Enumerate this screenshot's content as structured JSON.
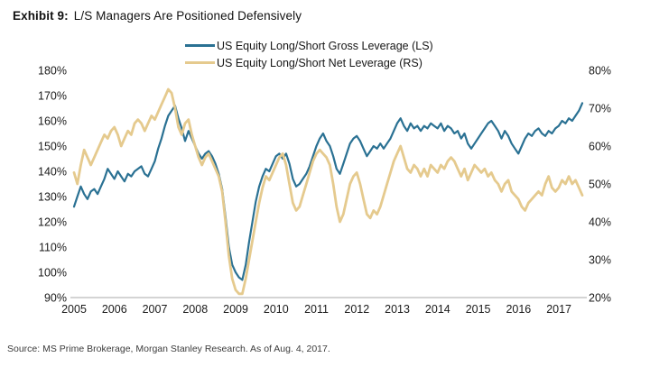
{
  "header": {
    "exhibit_label": "Exhibit 9:",
    "title": "L/S Managers Are Positioned Defensively"
  },
  "legend": [
    {
      "label": "US Equity Long/Short Gross Leverage (LS)",
      "color": "#2a7193"
    },
    {
      "label": "US Equity Long/Short Net Leverage (RS)",
      "color": "#e5ca8e"
    }
  ],
  "chart_data": {
    "type": "line",
    "x_start": 2005.0,
    "x_step_years": 0.0833,
    "x_tick_labels": [
      "2005",
      "2006",
      "2007",
      "2008",
      "2009",
      "2010",
      "2011",
      "2012",
      "2013",
      "2014",
      "2015",
      "2016",
      "2017"
    ],
    "left_axis": {
      "min": 90,
      "max": 180,
      "unit": "%",
      "tick_labels": [
        "180%",
        "170%",
        "160%",
        "150%",
        "140%",
        "130%",
        "120%",
        "110%",
        "100%",
        "90%"
      ]
    },
    "right_axis": {
      "min": 20,
      "max": 80,
      "unit": "%",
      "tick_labels": [
        "80%",
        "70%",
        "60%",
        "50%",
        "40%",
        "30%",
        "20%"
      ]
    },
    "grid": false,
    "legend_position": "top-center",
    "series": [
      {
        "name": "US Equity Long/Short Gross Leverage (LS)",
        "axis": "left",
        "color": "#2a7193",
        "values": [
          126,
          130,
          134,
          131,
          129,
          132,
          133,
          131,
          134,
          137,
          141,
          139,
          137,
          140,
          138,
          136,
          139,
          138,
          140,
          141,
          142,
          139,
          138,
          141,
          144,
          149,
          153,
          158,
          162,
          164,
          166,
          161,
          157,
          152,
          156,
          153,
          150,
          147,
          145,
          147,
          148,
          146,
          143,
          139,
          133,
          122,
          110,
          103,
          100,
          98,
          97,
          103,
          112,
          120,
          128,
          134,
          138,
          141,
          140,
          143,
          146,
          147,
          145,
          147,
          143,
          137,
          134,
          135,
          137,
          139,
          142,
          146,
          150,
          153,
          155,
          152,
          150,
          146,
          141,
          139,
          143,
          147,
          151,
          153,
          154,
          152,
          149,
          146,
          148,
          150,
          149,
          151,
          149,
          151,
          153,
          156,
          159,
          161,
          158,
          156,
          159,
          157,
          158,
          156,
          158,
          157,
          159,
          158,
          157,
          159,
          156,
          158,
          157,
          155,
          156,
          153,
          155,
          151,
          149,
          151,
          153,
          155,
          157,
          159,
          160,
          158,
          156,
          153,
          156,
          154,
          151,
          149,
          147,
          150,
          153,
          155,
          154,
          156,
          157,
          155,
          154,
          156,
          155,
          157,
          158,
          160,
          159,
          161,
          160,
          162,
          164,
          167
        ]
      },
      {
        "name": "US Equity Long/Short Net Leverage (RS)",
        "axis": "right",
        "color": "#e5ca8e",
        "values": [
          53,
          50,
          55,
          59,
          57,
          55,
          57,
          59,
          61,
          63,
          62,
          64,
          65,
          63,
          60,
          62,
          64,
          63,
          66,
          67,
          66,
          64,
          66,
          68,
          67,
          69,
          71,
          73,
          75,
          74,
          70,
          65,
          63,
          66,
          67,
          63,
          60,
          57,
          55,
          57,
          58,
          56,
          54,
          52,
          48,
          40,
          31,
          25,
          22,
          21,
          21,
          25,
          30,
          35,
          40,
          45,
          49,
          52,
          51,
          53,
          55,
          57,
          58,
          55,
          50,
          45,
          43,
          44,
          47,
          50,
          53,
          56,
          58,
          59,
          58,
          57,
          55,
          50,
          44,
          40,
          42,
          46,
          50,
          52,
          53,
          50,
          46,
          42,
          41,
          43,
          42,
          44,
          47,
          50,
          53,
          56,
          58,
          60,
          57,
          54,
          53,
          55,
          54,
          52,
          54,
          52,
          55,
          54,
          53,
          55,
          54,
          56,
          57,
          56,
          54,
          52,
          54,
          51,
          53,
          55,
          54,
          53,
          54,
          52,
          53,
          51,
          50,
          48,
          50,
          51,
          48,
          47,
          46,
          44,
          43,
          45,
          46,
          47,
          48,
          47,
          50,
          52,
          49,
          48,
          49,
          51,
          50,
          52,
          50,
          51,
          49,
          47
        ]
      }
    ]
  },
  "source": "Source: MS Prime Brokerage, Morgan Stanley Research. As of Aug. 4, 2017."
}
